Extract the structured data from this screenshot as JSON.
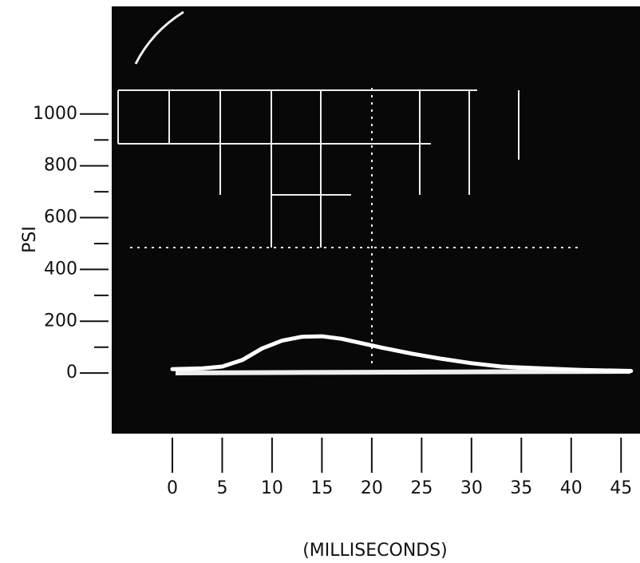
{
  "chart_data": {
    "type": "line",
    "ylabel": "PSI",
    "xlabel": "(MILLISECONDS)",
    "x": [
      0,
      3,
      5,
      7,
      9,
      11,
      13,
      15,
      17,
      19,
      21,
      24,
      27,
      30,
      33,
      37,
      41,
      46
    ],
    "series": [
      {
        "color": "#ffffff",
        "values": [
          15,
          18,
          25,
          50,
          95,
          125,
          140,
          142,
          132,
          115,
          98,
          75,
          55,
          38,
          25,
          18,
          12,
          8
        ]
      }
    ],
    "xlim": [
      -6,
      46.5
    ],
    "xticks": [
      0,
      5,
      10,
      15,
      20,
      25,
      30,
      35,
      40,
      45
    ],
    "ylim": [
      -200,
      1400
    ],
    "yticks": [
      0,
      200,
      400,
      600,
      800,
      1000
    ],
    "yminorticks": [
      100,
      300,
      500,
      700,
      900
    ]
  }
}
